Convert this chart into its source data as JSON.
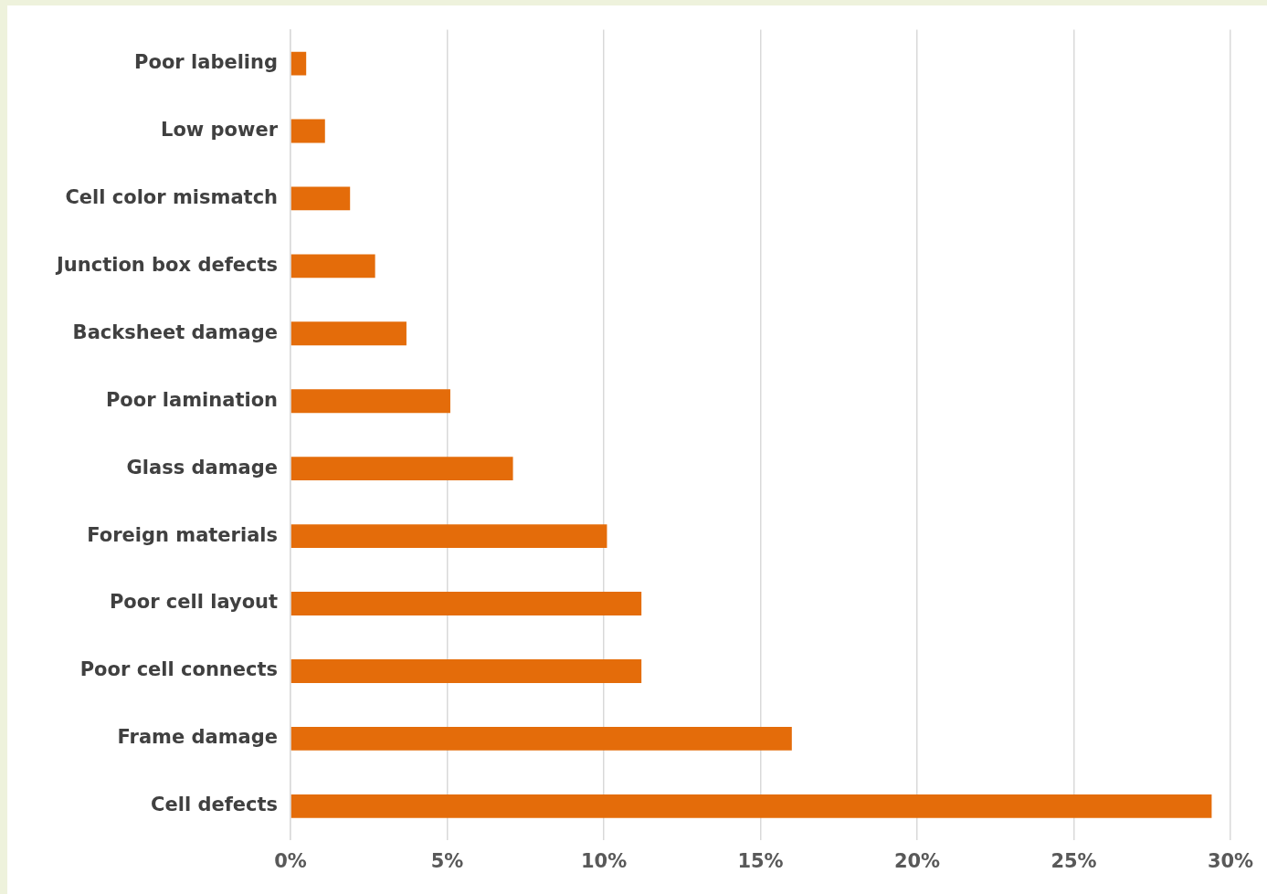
{
  "chart_data": {
    "type": "bar",
    "orientation": "horizontal",
    "categories": [
      "Poor labeling",
      "Low power",
      "Cell color mismatch",
      "Junction box defects",
      "Backsheet damage",
      "Poor lamination",
      "Glass damage",
      "Foreign materials",
      "Poor cell layout",
      "Poor cell connects",
      "Frame damage",
      "Cell defects"
    ],
    "values": [
      0.5,
      1.1,
      1.9,
      2.7,
      3.7,
      5.1,
      7.1,
      10.1,
      11.2,
      11.2,
      16.0,
      29.4
    ],
    "color": "#e46c0a",
    "xlim": [
      0,
      30
    ],
    "xticks": [
      {
        "value": 0,
        "label": "0%"
      },
      {
        "value": 5,
        "label": "5%"
      },
      {
        "value": 10,
        "label": "10%"
      },
      {
        "value": 15,
        "label": "15%"
      },
      {
        "value": 20,
        "label": "20%"
      },
      {
        "value": 25,
        "label": "25%"
      },
      {
        "value": 30,
        "label": "30%"
      }
    ],
    "grid": "x",
    "legend": false
  }
}
